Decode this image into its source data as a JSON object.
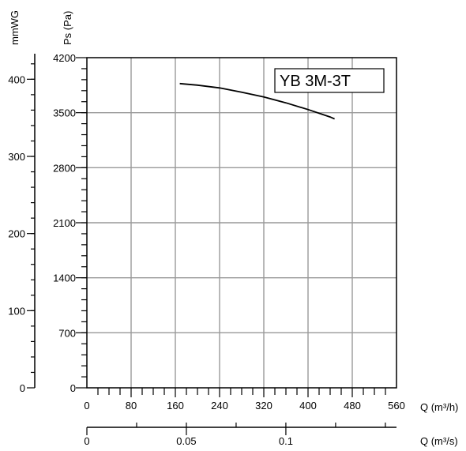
{
  "chart_data": {
    "type": "line",
    "model_label": "YB 3M-3T",
    "y_primary": {
      "label": "Ps (Pa)",
      "range": [
        0,
        4200
      ],
      "ticks": [
        0,
        700,
        1400,
        2100,
        2800,
        3500,
        4200
      ]
    },
    "y_secondary": {
      "label": "mmWG",
      "range": [
        0,
        428
      ],
      "ticks": [
        0,
        100,
        200,
        300,
        400
      ]
    },
    "x_primary": {
      "label": "Q (m³/h)",
      "range": [
        0,
        560
      ],
      "ticks": [
        0,
        80,
        160,
        240,
        320,
        400,
        480,
        560
      ]
    },
    "x_secondary": {
      "label": "Q (m³/s)",
      "range": [
        0,
        0.1556
      ],
      "ticks": [
        0,
        0.05,
        0.1
      ],
      "tick_labels": [
        "0",
        "0.05",
        "0.1"
      ]
    },
    "grid": true,
    "series": [
      {
        "x": [
          168,
          200,
          240,
          280,
          320,
          360,
          400,
          440,
          448
        ],
        "y": [
          3870,
          3850,
          3815,
          3760,
          3700,
          3625,
          3540,
          3445,
          3420
        ]
      }
    ],
    "colors": {
      "curve": "#000000",
      "grid": "#999999",
      "axis": "#000000"
    }
  }
}
